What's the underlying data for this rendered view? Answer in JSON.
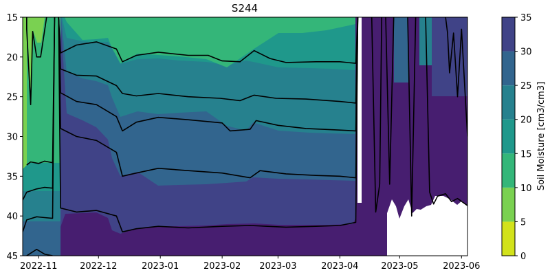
{
  "chart_data": {
    "type": "contour",
    "title": "S244",
    "xlabel": "",
    "ylabel": "",
    "x_tick_labels": [
      "2022-11",
      "2022-12",
      "2023-01",
      "2023-02",
      "2023-03",
      "2023-04",
      "2023-05",
      "2023-06"
    ],
    "x_tick_dates": [
      "2022-11-01",
      "2022-12-01",
      "2023-01-01",
      "2023-02-01",
      "2023-03-01",
      "2023-04-01",
      "2023-05-01",
      "2023-06-01"
    ],
    "xlim": [
      "2022-10-24",
      "2023-06-04"
    ],
    "y_ticks": [
      15,
      20,
      25,
      30,
      35,
      40,
      45
    ],
    "ylim": [
      45,
      15
    ],
    "y_inverted": true,
    "colorbar": {
      "label": "Soil Moisture [cm3/cm3]",
      "levels": [
        0,
        5,
        10,
        15,
        20,
        25,
        30,
        35
      ],
      "colors": [
        "#d2e21b",
        "#7ad151",
        "#34b679",
        "#1f988b",
        "#26818e",
        "#32658e",
        "#404387",
        "#471e70"
      ]
    },
    "contour_lines": [
      {
        "level": 15,
        "points": [
          [
            "2022-10-26",
            33.6
          ],
          [
            "2022-10-28",
            33.2
          ],
          [
            "2022-11-01",
            33.4
          ],
          [
            "2022-11-04",
            33.1
          ],
          [
            "2022-11-08",
            33.3
          ],
          [
            "2022-11-09",
            15.0
          ]
        ]
      },
      {
        "level": 20,
        "points": [
          [
            "2022-10-24",
            38.0
          ],
          [
            "2022-10-26",
            37.0
          ],
          [
            "2022-10-31",
            36.6
          ],
          [
            "2022-11-04",
            36.4
          ],
          [
            "2022-11-08",
            36.5
          ],
          [
            "2022-11-09",
            15.0
          ]
        ]
      },
      {
        "level": 25,
        "points": [
          [
            "2022-10-24",
            42.0
          ],
          [
            "2022-10-26",
            40.5
          ],
          [
            "2022-10-31",
            40.1
          ],
          [
            "2022-11-04",
            40.2
          ],
          [
            "2022-11-08",
            40.3
          ],
          [
            "2022-11-09",
            15.0
          ]
        ]
      },
      {
        "level": 30,
        "points": [
          [
            "2022-10-26",
            45.0
          ],
          [
            "2022-10-31",
            44.2
          ],
          [
            "2022-11-04",
            44.8
          ],
          [
            "2022-11-08",
            45.0
          ]
        ]
      },
      {
        "level": 10,
        "points": [
          [
            "2022-10-26",
            15.0
          ],
          [
            "2022-10-26",
            16.5
          ],
          [
            "2022-10-28",
            26.0
          ],
          [
            "2022-10-29",
            16.8
          ],
          [
            "2022-10-31",
            20.0
          ],
          [
            "2022-11-02",
            20.0
          ],
          [
            "2022-11-05",
            15.0
          ]
        ]
      },
      {
        "level": 20,
        "points": [
          [
            "2022-11-11",
            15.0
          ],
          [
            "2022-11-12",
            19.5
          ],
          [
            "2022-11-20",
            18.5
          ],
          [
            "2022-11-30",
            18.1
          ],
          [
            "2022-12-10",
            19.0
          ],
          [
            "2022-12-13",
            20.6
          ],
          [
            "2022-12-20",
            19.8
          ],
          [
            "2022-12-31",
            19.4
          ],
          [
            "2023-01-15",
            19.8
          ],
          [
            "2023-01-25",
            19.8
          ],
          [
            "2023-02-01",
            20.5
          ],
          [
            "2023-02-10",
            20.6
          ],
          [
            "2023-02-17",
            19.2
          ],
          [
            "2023-02-25",
            20.2
          ],
          [
            "2023-03-05",
            20.7
          ],
          [
            "2023-03-20",
            20.6
          ],
          [
            "2023-04-01",
            20.6
          ],
          [
            "2023-04-09",
            20.8
          ],
          [
            "2023-04-10",
            15.0
          ]
        ]
      },
      {
        "level": 25,
        "points": [
          [
            "2022-11-11",
            15.0
          ],
          [
            "2022-11-12",
            21.5
          ],
          [
            "2022-11-20",
            22.3
          ],
          [
            "2022-11-30",
            22.4
          ],
          [
            "2022-12-10",
            23.6
          ],
          [
            "2022-12-13",
            24.6
          ],
          [
            "2022-12-20",
            24.9
          ],
          [
            "2022-12-31",
            24.6
          ],
          [
            "2023-01-15",
            25.0
          ],
          [
            "2023-01-31",
            25.2
          ],
          [
            "2023-02-10",
            25.5
          ],
          [
            "2023-02-17",
            24.8
          ],
          [
            "2023-02-28",
            25.2
          ],
          [
            "2023-03-15",
            25.3
          ],
          [
            "2023-04-01",
            25.6
          ],
          [
            "2023-04-09",
            25.8
          ],
          [
            "2023-04-10",
            15.0
          ]
        ]
      },
      {
        "level": 30,
        "points": [
          [
            "2022-11-11",
            15.0
          ],
          [
            "2022-11-12",
            24.5
          ],
          [
            "2022-11-20",
            25.6
          ],
          [
            "2022-11-30",
            26.0
          ],
          [
            "2022-12-10",
            27.5
          ],
          [
            "2022-12-13",
            29.3
          ],
          [
            "2022-12-20",
            28.2
          ],
          [
            "2022-12-31",
            27.6
          ],
          [
            "2023-01-15",
            27.9
          ],
          [
            "2023-02-01",
            28.3
          ],
          [
            "2023-02-05",
            29.3
          ],
          [
            "2023-02-15",
            29.1
          ],
          [
            "2023-02-18",
            28.0
          ],
          [
            "2023-03-01",
            28.6
          ],
          [
            "2023-03-15",
            29.0
          ],
          [
            "2023-04-01",
            29.2
          ],
          [
            "2023-04-09",
            29.3
          ],
          [
            "2023-04-10",
            15.0
          ]
        ]
      },
      {
        "level": 35,
        "points": [
          [
            "2022-11-11",
            15.0
          ],
          [
            "2022-11-12",
            29.0
          ],
          [
            "2022-11-20",
            30.0
          ],
          [
            "2022-11-30",
            30.5
          ],
          [
            "2022-12-10",
            32.0
          ],
          [
            "2022-12-13",
            35.0
          ],
          [
            "2022-12-20",
            34.6
          ],
          [
            "2022-12-31",
            34.0
          ],
          [
            "2023-01-15",
            34.3
          ],
          [
            "2023-02-01",
            34.6
          ],
          [
            "2023-02-15",
            35.2
          ],
          [
            "2023-02-20",
            34.3
          ],
          [
            "2023-03-05",
            34.7
          ],
          [
            "2023-03-20",
            34.9
          ],
          [
            "2023-04-01",
            35.0
          ],
          [
            "2023-04-09",
            35.2
          ],
          [
            "2023-04-10",
            15.0
          ]
        ]
      },
      {
        "level": 40,
        "points": [
          [
            "2022-11-11",
            15.0
          ],
          [
            "2022-11-12",
            39.0
          ],
          [
            "2022-11-20",
            39.5
          ],
          [
            "2022-11-30",
            39.3
          ],
          [
            "2022-12-10",
            40.0
          ],
          [
            "2022-12-13",
            42.0
          ],
          [
            "2022-12-20",
            41.6
          ],
          [
            "2022-12-31",
            41.3
          ],
          [
            "2023-01-15",
            41.5
          ],
          [
            "2023-02-01",
            41.3
          ],
          [
            "2023-02-15",
            41.2
          ],
          [
            "2023-03-05",
            41.4
          ],
          [
            "2023-03-20",
            41.3
          ],
          [
            "2023-04-01",
            41.2
          ],
          [
            "2023-04-09",
            40.8
          ],
          [
            "2023-04-10",
            15.0
          ]
        ]
      },
      {
        "level": 35,
        "points": [
          [
            "2023-04-17",
            15.0
          ],
          [
            "2023-04-19",
            39.5
          ],
          [
            "2023-04-21",
            36.0
          ],
          [
            "2023-04-22",
            15.0
          ]
        ]
      },
      {
        "level": 35,
        "points": [
          [
            "2023-04-24",
            15.0
          ],
          [
            "2023-04-26",
            36.0
          ],
          [
            "2023-04-28",
            15.0
          ]
        ]
      },
      {
        "level": 35,
        "points": [
          [
            "2023-05-05",
            15.0
          ],
          [
            "2023-05-07",
            40.0
          ],
          [
            "2023-05-09",
            15.0
          ]
        ]
      },
      {
        "level": 35,
        "points": [
          [
            "2023-05-14",
            15.0
          ],
          [
            "2023-05-16",
            37.0
          ],
          [
            "2023-05-18",
            38.5
          ],
          [
            "2023-05-20",
            37.5
          ],
          [
            "2023-05-24",
            37.2
          ],
          [
            "2023-05-27",
            38.2
          ],
          [
            "2023-05-30",
            37.8
          ],
          [
            "2023-06-04",
            38.7
          ]
        ]
      },
      {
        "level": 30,
        "points": [
          [
            "2023-05-24",
            15.0
          ],
          [
            "2023-05-25",
            17.0
          ],
          [
            "2023-05-26",
            22.0
          ],
          [
            "2023-05-28",
            17.0
          ],
          [
            "2023-05-30",
            25.0
          ],
          [
            "2023-06-01",
            16.5
          ],
          [
            "2023-06-04",
            30.0
          ]
        ]
      }
    ],
    "missing_data_ranges": [
      [
        "2023-04-11",
        "2023-04-15"
      ],
      [
        "2023-04-28",
        "2023-06-04"
      ]
    ]
  }
}
